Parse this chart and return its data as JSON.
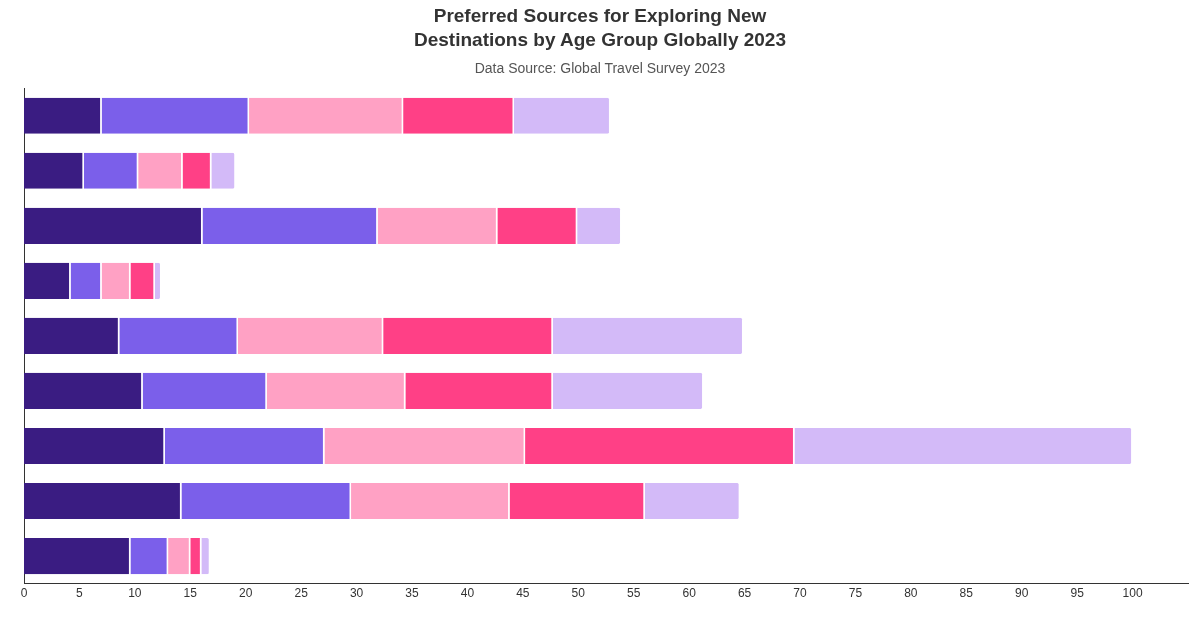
{
  "chart_data": {
    "type": "bar",
    "orientation": "horizontal",
    "stacked": true,
    "title": "Preferred Sources for Exploring New Destinations by Age Group Globally 2023",
    "subtitle": "Data Source: Global Travel Survey 2023",
    "categories": [
      null,
      null,
      null,
      null,
      null,
      null,
      null,
      null,
      null
    ],
    "series": [
      {
        "color": "#3a1c82",
        "values": [
          7.0,
          5.4,
          16.1,
          4.2,
          8.6,
          10.7,
          12.7,
          14.2,
          9.6
        ]
      },
      {
        "color": "#7b5fea",
        "values": [
          13.3,
          4.9,
          15.8,
          2.8,
          10.7,
          11.2,
          14.4,
          15.3,
          3.4
        ]
      },
      {
        "color": "#ffa1c4",
        "values": [
          13.9,
          4.0,
          10.8,
          2.6,
          13.1,
          12.5,
          18.1,
          14.3,
          2.0
        ]
      },
      {
        "color": "#ff4086",
        "values": [
          10.0,
          2.6,
          7.2,
          2.2,
          15.3,
          13.3,
          24.3,
          12.2,
          1.0
        ]
      },
      {
        "color": "#d3baf8",
        "values": [
          8.7,
          2.2,
          4.0,
          0.6,
          17.2,
          13.6,
          30.5,
          8.6,
          0.8
        ]
      }
    ],
    "xlim": [
      0,
      105
    ],
    "xticks": [
      0,
      5,
      10,
      15,
      20,
      25,
      30,
      35,
      40,
      45,
      50,
      55,
      60,
      65,
      70,
      75,
      80,
      85,
      90,
      95,
      100
    ],
    "grid": false,
    "legend": false
  }
}
